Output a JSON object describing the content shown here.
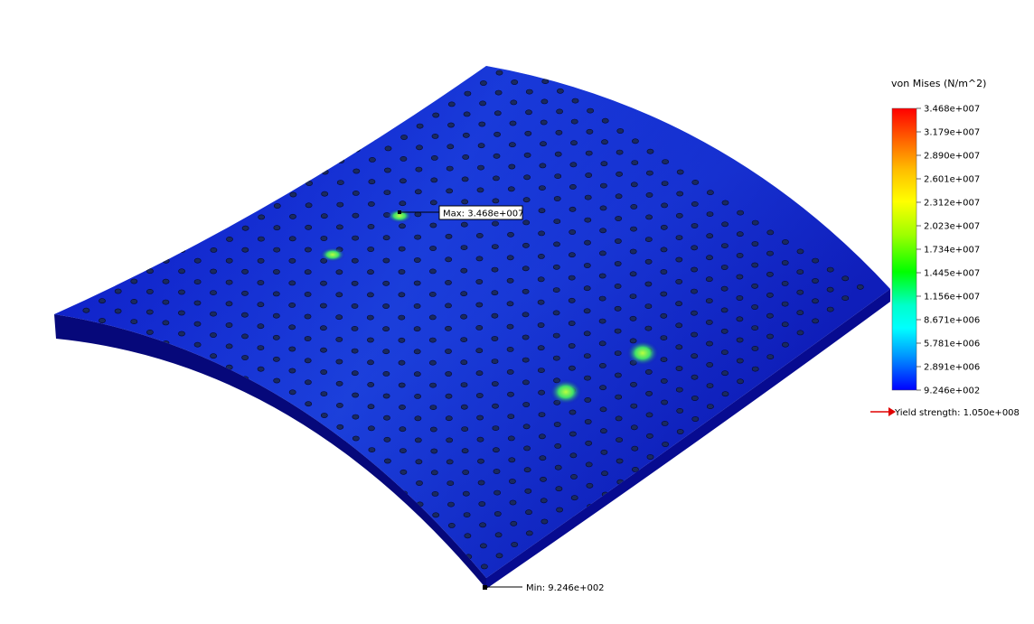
{
  "legend": {
    "title": "von Mises (N/m^2)",
    "ticks": [
      "3.468e+007",
      "3.179e+007",
      "2.890e+007",
      "2.601e+007",
      "2.312e+007",
      "2.023e+007",
      "1.734e+007",
      "1.445e+007",
      "1.156e+007",
      "8.671e+006",
      "5.781e+006",
      "2.891e+006",
      "9.246e+002"
    ],
    "yield_label": "Yield strength: 1.050e+008",
    "colors": [
      "#ff0000",
      "#ff6a00",
      "#ffbf00",
      "#ffff00",
      "#9dff00",
      "#00ff00",
      "#00ff9a",
      "#00ffff",
      "#0094ff",
      "#0000ff"
    ]
  },
  "annotations": {
    "max_label": "Max: 3.468e+007",
    "min_label": "Min: 9.246e+002"
  },
  "model": {
    "body_color": "#0a10b8",
    "hole_color": "#1a2a5e",
    "hotspot_color": "#3fe06a"
  }
}
